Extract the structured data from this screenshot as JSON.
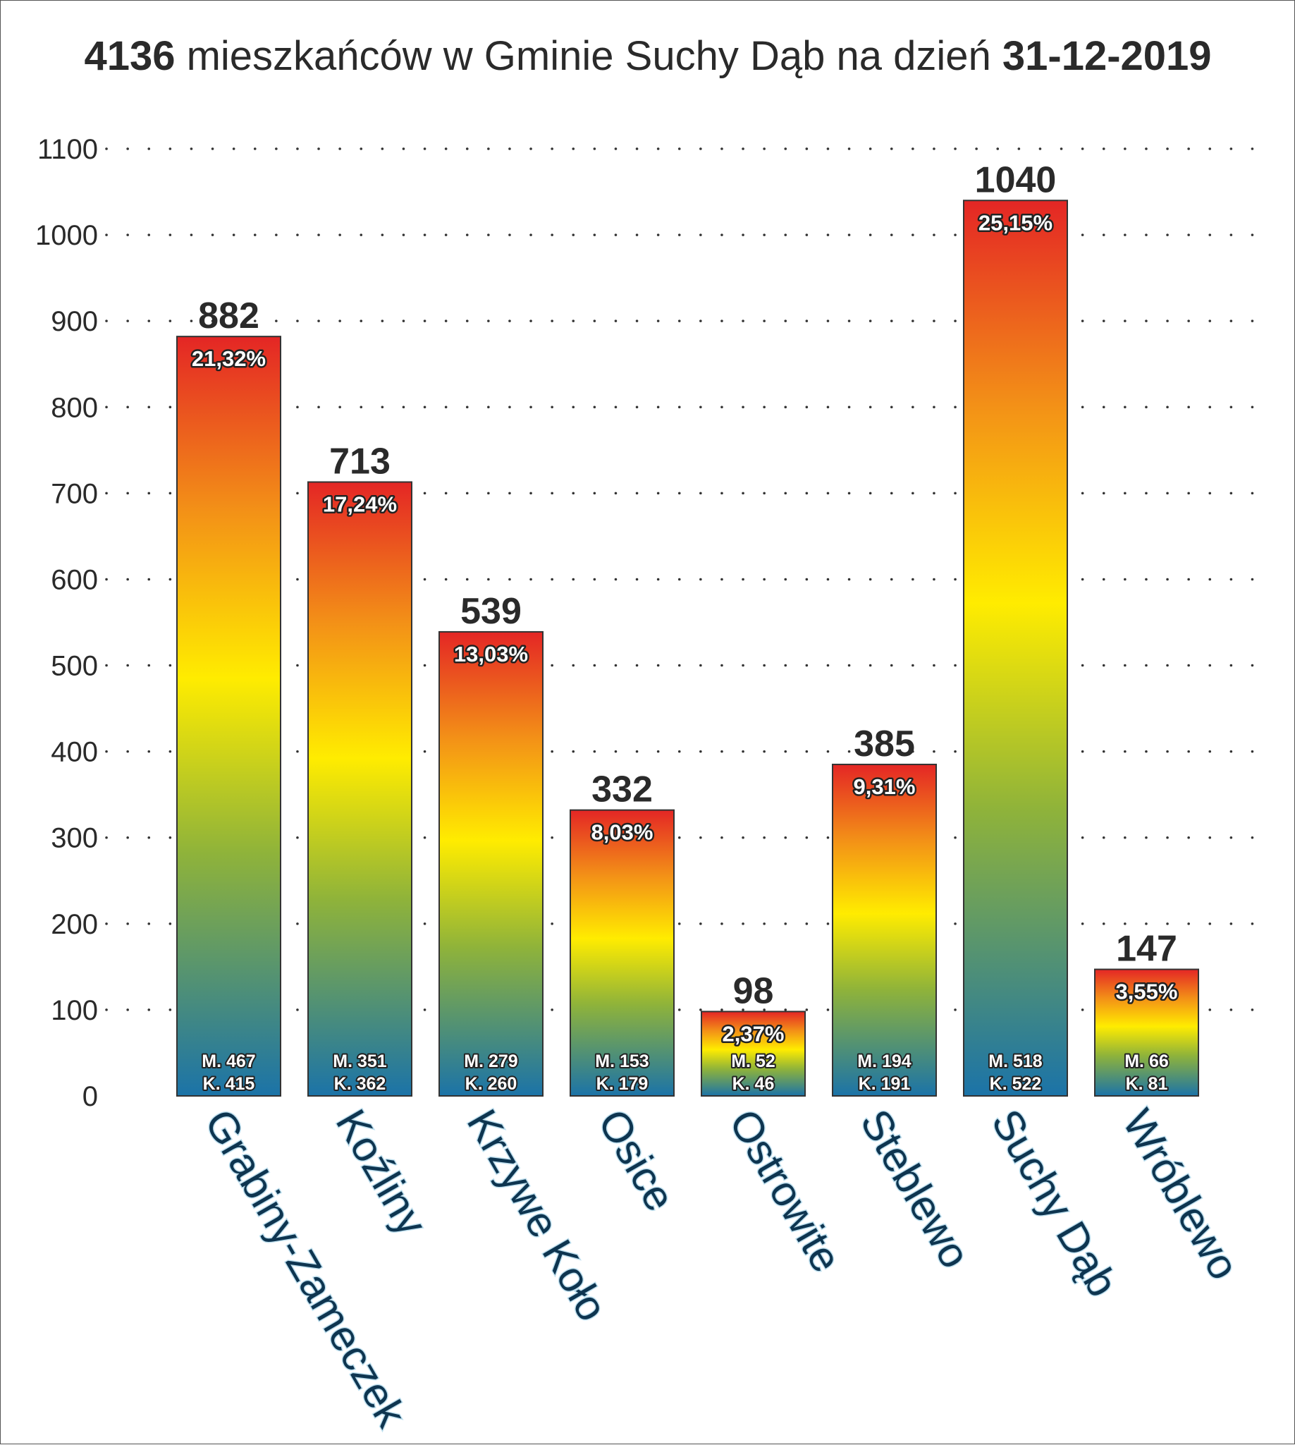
{
  "title": {
    "total": "4136",
    "middle": " mieszkańców w Gminie Suchy Dąb na dzień ",
    "date": "31-12-2019"
  },
  "colors": {
    "gradient_top": "#e42625",
    "gradient_orange": "#f39117",
    "gradient_yellow": "#ffec00",
    "gradient_green": "#8fb33a",
    "gradient_bottom": "#1b73a8",
    "bar_outline": "#333333",
    "grid_dots": "#333333"
  },
  "chart_data": {
    "type": "bar",
    "title": "4136 mieszkańców w Gminie Suchy Dąb na dzień 31-12-2019",
    "categories": [
      "Grabiny-Zameczek",
      "Koźliny",
      "Krzywe Koło",
      "Osice",
      "Ostrowite",
      "Steblewo",
      "Suchy Dąb",
      "Wróblewo"
    ],
    "values": [
      882,
      713,
      539,
      332,
      98,
      385,
      1040,
      147
    ],
    "value_labels": [
      "882",
      "713",
      "539",
      "332",
      "98",
      "385",
      "1040",
      "147"
    ],
    "percent_labels": [
      "21,32%",
      "17,24%",
      "13,03%",
      "8,03%",
      "2,37%",
      "9,31%",
      "25,15%",
      "3,55%"
    ],
    "male_labels": [
      "M. 467",
      "M. 351",
      "M. 279",
      "M. 153",
      "M. 52",
      "M. 194",
      "M. 518",
      "M. 66"
    ],
    "female_labels": [
      "K. 415",
      "K. 362",
      "K. 260",
      "K. 179",
      "K. 46",
      "K. 191",
      "K. 522",
      "K. 81"
    ],
    "ylim": [
      0,
      1100
    ],
    "yticks": [
      0,
      100,
      200,
      300,
      400,
      500,
      600,
      700,
      800,
      900,
      1000,
      1100
    ],
    "ytick_labels": [
      "0",
      "100",
      "200",
      "300",
      "400",
      "500",
      "600",
      "700",
      "800",
      "900",
      "1000",
      "1100"
    ],
    "grid": "dotted",
    "legend": "none"
  }
}
